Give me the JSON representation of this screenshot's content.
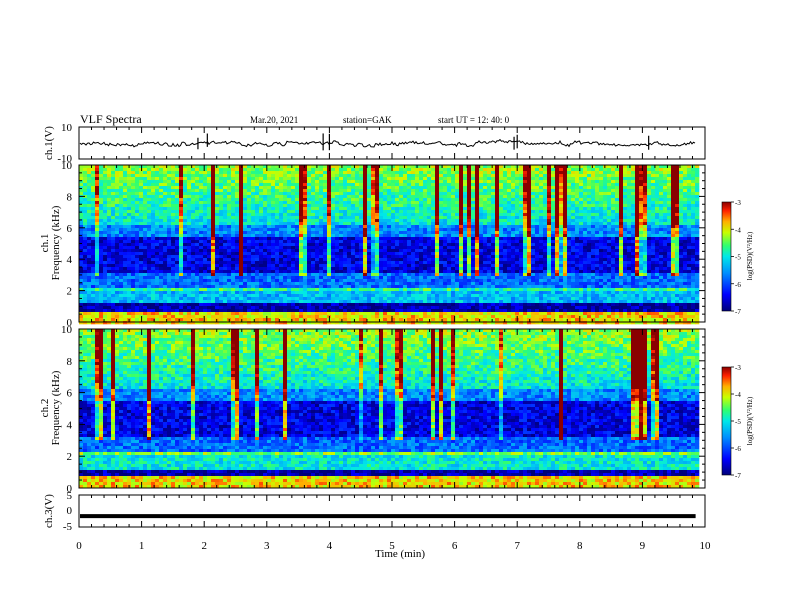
{
  "header": {
    "title": "VLF Spectra",
    "date": "Mar.20, 2021",
    "station": "station=GAK",
    "start": "start UT =  12: 40: 0"
  },
  "chart_data": [
    {
      "panel": "ch1-waveform",
      "type": "line",
      "ylabel": "ch.1(V)",
      "ylim": [
        -10,
        10
      ],
      "yticks": [
        "10",
        "-10"
      ],
      "baseline": 0,
      "data_ends_x": 9.85
    },
    {
      "panel": "ch1-spectrogram",
      "type": "heatmap",
      "ylabel_top": "ch.1",
      "ylabel": "Frequency (kHz)",
      "ylim": [
        0,
        10
      ],
      "yticks": [
        "0",
        "2",
        "4",
        "6",
        "8",
        "10"
      ],
      "colorbar": {
        "label": "log(PSD)(V²/Hz)",
        "range": [
          -7,
          -3
        ],
        "ticks": [
          "-3",
          "-4",
          "-5",
          "-6",
          "-7"
        ]
      }
    },
    {
      "panel": "ch2-spectrogram",
      "type": "heatmap",
      "ylabel_top": "ch.2",
      "ylabel": "Frequency (kHz)",
      "ylim": [
        0,
        10
      ],
      "yticks": [
        "0",
        "2",
        "4",
        "6",
        "8",
        "10"
      ],
      "colorbar": {
        "label": "log(PSD)(V²/Hz)",
        "range": [
          -7,
          -3
        ],
        "ticks": [
          "-3",
          "-4",
          "-5",
          "-6",
          "-7"
        ]
      }
    },
    {
      "panel": "ch3-waveform",
      "type": "line",
      "ylabel": "ch.3(V)",
      "ylim": [
        -5,
        5
      ],
      "yticks": [
        "5",
        "0",
        "-5"
      ],
      "baseline": -1.6,
      "data_ends_x": 9.85
    }
  ],
  "xaxis": {
    "label": "Time (min)",
    "xlim": [
      0,
      10
    ],
    "ticks": [
      "0",
      "1",
      "2",
      "3",
      "4",
      "5",
      "6",
      "7",
      "8",
      "9",
      "10"
    ]
  },
  "colors": {
    "frame": "#000000",
    "trace": "#000000",
    "colormap": [
      "#00007a",
      "#0000ff",
      "#0080ff",
      "#00e0ff",
      "#40ff80",
      "#e0ff00",
      "#ff8000",
      "#ff0000",
      "#8a0000"
    ]
  }
}
